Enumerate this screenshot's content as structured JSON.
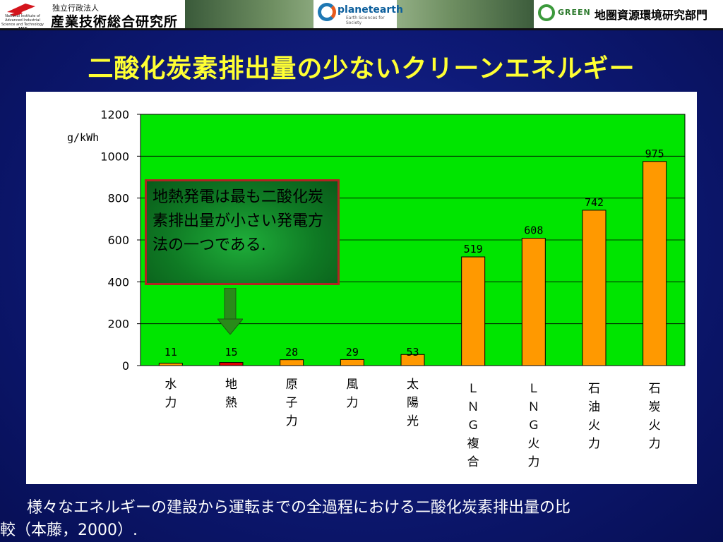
{
  "header": {
    "aist_sub": "独立行政法人",
    "aist_name": "産業技術総合研究所",
    "aist_small": "National Institute of Advanced Industrial Science and Technology",
    "aist_acronym": "AIST",
    "planet_name": "planetearth",
    "planet_sub": "Earth Sciences for Society",
    "green_name": "GREEN",
    "green_dept": "地圏資源環境研究部門"
  },
  "slide": {
    "title": "二酸化炭素排出量の少ないクリーンエネルギー",
    "callout": "地熱発電は最も二酸化炭素排出量が小さい発電方法の一つである.",
    "caption_line1": "様々なエネルギーの建設から運転までの全過程における二酸化炭素排出量の比",
    "caption_line2": "較（本藤，2000）."
  },
  "colors": {
    "plot_bg": "#00e500",
    "bar_default": "#ff9900",
    "bar_geothermal": "#e00000",
    "title": "#ffff33"
  },
  "chart_data": {
    "type": "bar",
    "unit_label": "g/kWh",
    "ylim": [
      0,
      1200
    ],
    "yticks": [
      0,
      200,
      400,
      600,
      800,
      1000,
      1200
    ],
    "grid": true,
    "categories": [
      "水力",
      "地熱",
      "原子力",
      "風力",
      "太陽光",
      "ＬＮＧ複合",
      "ＬＮＧ火力",
      "石油火力",
      "石炭火力"
    ],
    "values": [
      11,
      15,
      28,
      29,
      53,
      519,
      608,
      742,
      975
    ],
    "highlight_index": 1
  }
}
